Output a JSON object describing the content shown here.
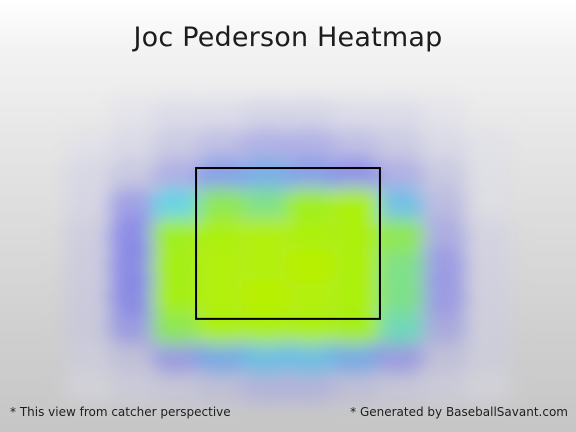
{
  "chart_data": {
    "type": "heatmap",
    "title": "Joc Pederson Heatmap",
    "view": "catcher perspective",
    "grid": false,
    "x": [
      -1.8,
      -1.4,
      -1.0,
      -0.6,
      -0.2,
      0.2,
      0.6,
      1.0,
      1.4,
      1.8
    ],
    "y": [
      0.6,
      1.0,
      1.4,
      1.8,
      2.2,
      2.6,
      3.0,
      3.4,
      3.8,
      4.2
    ],
    "z": [
      [
        0.05,
        0.1,
        0.15,
        0.2,
        0.25,
        0.25,
        0.2,
        0.15,
        0.1,
        0.05
      ],
      [
        0.1,
        0.2,
        0.35,
        0.5,
        0.55,
        0.55,
        0.5,
        0.35,
        0.2,
        0.1
      ],
      [
        0.15,
        0.35,
        0.75,
        0.9,
        0.9,
        0.9,
        0.85,
        0.65,
        0.3,
        0.1
      ],
      [
        0.15,
        0.4,
        0.85,
        0.95,
        1.0,
        0.95,
        0.9,
        0.7,
        0.35,
        0.1
      ],
      [
        0.15,
        0.4,
        0.85,
        0.95,
        0.95,
        1.0,
        0.9,
        0.7,
        0.35,
        0.1
      ],
      [
        0.15,
        0.4,
        0.8,
        0.9,
        0.95,
        0.9,
        0.9,
        0.75,
        0.3,
        0.1
      ],
      [
        0.1,
        0.35,
        0.6,
        0.75,
        0.7,
        0.8,
        0.9,
        0.55,
        0.25,
        0.05
      ],
      [
        0.1,
        0.2,
        0.3,
        0.45,
        0.5,
        0.45,
        0.4,
        0.3,
        0.2,
        0.05
      ],
      [
        0.05,
        0.1,
        0.2,
        0.25,
        0.3,
        0.3,
        0.25,
        0.2,
        0.1,
        0.05
      ],
      [
        0.0,
        0.05,
        0.1,
        0.1,
        0.15,
        0.15,
        0.1,
        0.1,
        0.05,
        0.0
      ]
    ],
    "strike_zone": {
      "x": [
        -0.83,
        0.83
      ],
      "y": [
        1.5,
        3.5
      ]
    },
    "xlim": [
      -2.6,
      2.6
    ],
    "ylim": [
      0.0,
      4.8
    ],
    "colorscale": [
      "#e6e6ee",
      "#b4b4e0",
      "#6c6cec",
      "#4fd2e6",
      "#9fef1e",
      "#b8f000"
    ],
    "strike_zone_color": "#000000"
  },
  "footer": {
    "left_note": "* This view from catcher perspective",
    "right_note": "* Generated by BaseballSavant.com"
  }
}
